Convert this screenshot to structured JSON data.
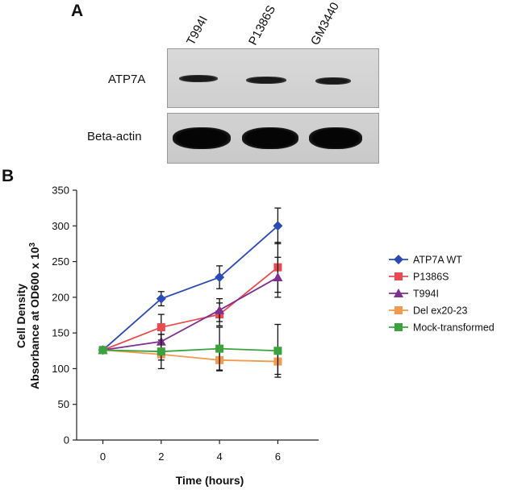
{
  "panel_a": {
    "letter": "A",
    "lanes": [
      "T994I",
      "P1386S",
      "GM3440"
    ],
    "rows": [
      "ATP7A",
      "Beta-actin"
    ]
  },
  "panel_b": {
    "letter": "B"
  },
  "chart_data": {
    "type": "line",
    "title": "",
    "xlabel": "Time (hours)",
    "ylabel_line1": "Cell Density",
    "ylabel_line2": "Absorbance at OD600 x 10",
    "ylabel_superscript": "3",
    "x": [
      0,
      2,
      4,
      6
    ],
    "xlim": [
      -0.9,
      7.4
    ],
    "ylim": [
      0,
      350
    ],
    "xticks": [
      0,
      2,
      4,
      6
    ],
    "yticks": [
      0,
      50,
      100,
      150,
      200,
      250,
      300,
      350
    ],
    "grid": false,
    "legend_position": "right",
    "series": [
      {
        "name": "ATP7A WT",
        "color": "#2a4bb5",
        "marker": "diamond",
        "values": [
          126,
          198,
          228,
          300
        ],
        "errors": [
          0,
          10,
          16,
          25
        ]
      },
      {
        "name": "P1386S",
        "color": "#ea4b50",
        "marker": "square",
        "values": [
          126,
          158,
          176,
          242
        ],
        "errors": [
          0,
          18,
          16,
          35
        ]
      },
      {
        "name": "T994I",
        "color": "#7e2f90",
        "marker": "triangle",
        "values": [
          126,
          138,
          182,
          228
        ],
        "errors": [
          0,
          10,
          16,
          28
        ]
      },
      {
        "name": "Del ex20-23",
        "color": "#f39a4e",
        "marker": "square",
        "values": [
          126,
          120,
          112,
          110
        ],
        "errors": [
          0,
          8,
          15,
          18
        ]
      },
      {
        "name": "Mock-transformed",
        "color": "#3aa33d",
        "marker": "square",
        "values": [
          126,
          124,
          128,
          125
        ],
        "errors": [
          0,
          24,
          30,
          37
        ]
      }
    ]
  }
}
